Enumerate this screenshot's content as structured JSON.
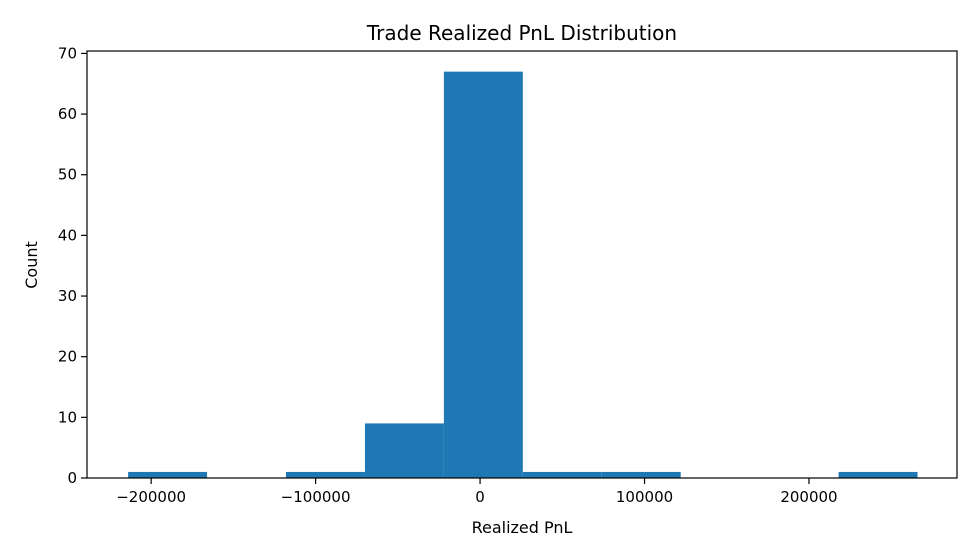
{
  "chart_data": {
    "type": "bar",
    "title": "Trade Realized PnL Distribution",
    "xlabel": "Realized PnL",
    "ylabel": "Count",
    "xlim": [
      -239000,
      290000
    ],
    "ylim": [
      0,
      70.4
    ],
    "xticks": [
      -200000,
      -100000,
      0,
      100000,
      200000
    ],
    "xtick_labels": [
      "−200000",
      "−100000",
      "0",
      "100000",
      "200000"
    ],
    "yticks": [
      0,
      10,
      20,
      30,
      40,
      50,
      60,
      70
    ],
    "ytick_labels": [
      "0",
      "10",
      "20",
      "30",
      "40",
      "50",
      "60",
      "70"
    ],
    "bins": {
      "edges": [
        -214000,
        -166000,
        -118000,
        -70000,
        -22000,
        26000,
        74000,
        122000,
        170000,
        218000,
        266000
      ],
      "counts": [
        1,
        0,
        1,
        9,
        67,
        1,
        1,
        0,
        0,
        1
      ]
    },
    "colors": {
      "bar": "#1f77b4"
    },
    "grid": false,
    "legend": "none"
  }
}
